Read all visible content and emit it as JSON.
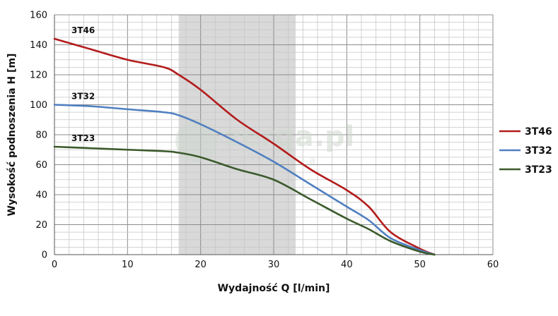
{
  "chart_data": {
    "type": "line",
    "xlabel": "Wydajność Q [l/min]",
    "ylabel": "Wysokość podnoszenia H [m]",
    "xlim": [
      0,
      60
    ],
    "ylim": [
      0,
      160
    ],
    "xticks": [
      "0",
      "10",
      "20",
      "30",
      "40",
      "50",
      "60"
    ],
    "yticks": [
      "0",
      "20",
      "40",
      "60",
      "80",
      "100",
      "120",
      "140",
      "160"
    ],
    "grid": true,
    "legend_position": "right",
    "highlight_band": [
      17,
      33
    ],
    "series": [
      {
        "name": "3T46",
        "color": "#b31b1b",
        "x": [
          0,
          5,
          10,
          15,
          17,
          20,
          25,
          30,
          35,
          40,
          43,
          46,
          50,
          52
        ],
        "y": [
          144,
          137,
          130,
          125,
          120,
          110,
          90,
          74,
          57,
          43,
          32,
          15,
          4,
          0
        ]
      },
      {
        "name": "3T32",
        "color": "#4f7fc0",
        "x": [
          0,
          5,
          10,
          15,
          17,
          20,
          25,
          30,
          35,
          40,
          43,
          46,
          50,
          52
        ],
        "y": [
          100,
          99,
          97,
          95,
          93,
          87,
          75,
          62,
          47,
          32,
          23,
          11,
          3,
          0
        ]
      },
      {
        "name": "3T23",
        "color": "#3b5a2c",
        "x": [
          0,
          5,
          10,
          15,
          17,
          20,
          25,
          30,
          35,
          40,
          43,
          46,
          50,
          52
        ],
        "y": [
          72,
          71,
          70,
          69,
          68,
          65,
          57,
          50,
          37,
          24,
          17,
          9,
          2,
          0
        ]
      }
    ],
    "watermark": {
      "main": "zerga.pl",
      "sub": "narzędzia"
    }
  }
}
